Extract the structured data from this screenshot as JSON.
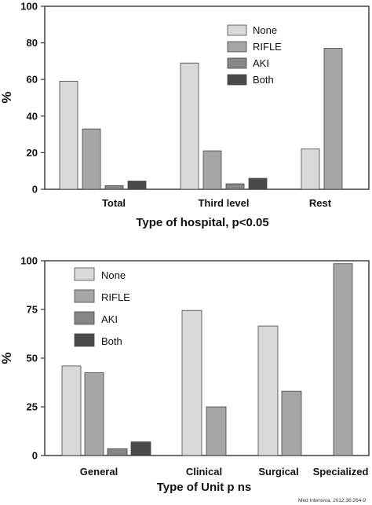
{
  "chart_data": [
    {
      "type": "bar",
      "categories": [
        "Total",
        "Third level",
        "Rest"
      ],
      "series": [
        {
          "name": "None",
          "values": [
            59,
            69,
            22
          ]
        },
        {
          "name": "RIFLE",
          "values": [
            33,
            21,
            77
          ]
        },
        {
          "name": "AKI",
          "values": [
            2,
            3,
            null
          ]
        },
        {
          "name": "Both",
          "values": [
            4.5,
            6,
            null
          ]
        }
      ],
      "colors": [
        "#d9d9d9",
        "#a6a6a6",
        "#868686",
        "#4a4a4a"
      ],
      "xlabel": "Type of hospital, p<0.05",
      "ylabel": "%",
      "ylim": [
        0,
        100
      ],
      "yticks": [
        0,
        20,
        40,
        60,
        80,
        100
      ],
      "grid": false,
      "legend_position": "top-right"
    },
    {
      "type": "bar",
      "categories": [
        "General",
        "Clinical",
        "Surgical",
        "Specialized"
      ],
      "series": [
        {
          "name": "None",
          "values": [
            46,
            74.5,
            66.5,
            null
          ]
        },
        {
          "name": "RIFLE",
          "values": [
            42.5,
            25,
            33,
            98.5
          ]
        },
        {
          "name": "AKI",
          "values": [
            3.5,
            null,
            null,
            null
          ]
        },
        {
          "name": "Both",
          "values": [
            7,
            null,
            null,
            null
          ]
        }
      ],
      "colors": [
        "#d9d9d9",
        "#a6a6a6",
        "#868686",
        "#4a4a4a"
      ],
      "xlabel": "Type of Unit p ns",
      "ylabel": "%",
      "ylim": [
        0,
        100
      ],
      "yticks": [
        0,
        25,
        50,
        75,
        100
      ],
      "grid": false,
      "legend_position": "top-left"
    }
  ],
  "credit": "Med Intensiva. 2012;36:264-9"
}
